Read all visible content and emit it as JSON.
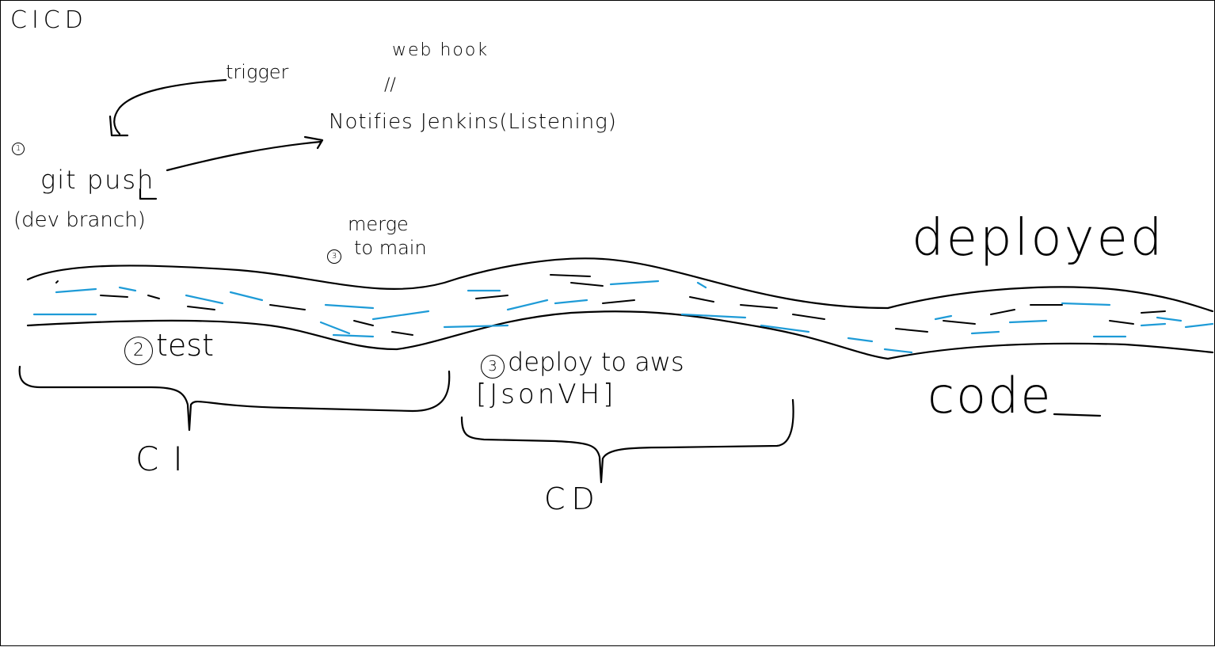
{
  "title": "CICD",
  "labels": {
    "trigger": "trigger",
    "webhook": "web hook",
    "webhook_mark": "//",
    "notifies": "Notifies Jenkins(Listening)",
    "step1": "1",
    "git_push": "git push",
    "dev_branch": "(dev branch)",
    "merge_line1": "merge",
    "merge_line2": "to main",
    "step_merge": "3",
    "deployed": "deployed",
    "code": "code",
    "step2": "2",
    "test": "test",
    "step3": "3",
    "deploy_line1": "deploy to aws",
    "deploy_line2": "[JsonVH]",
    "ci": "CI",
    "cd": "CD"
  },
  "colors": {
    "ink": "#000000",
    "river_water": "#1e9bd7",
    "background": "#ffffff"
  }
}
